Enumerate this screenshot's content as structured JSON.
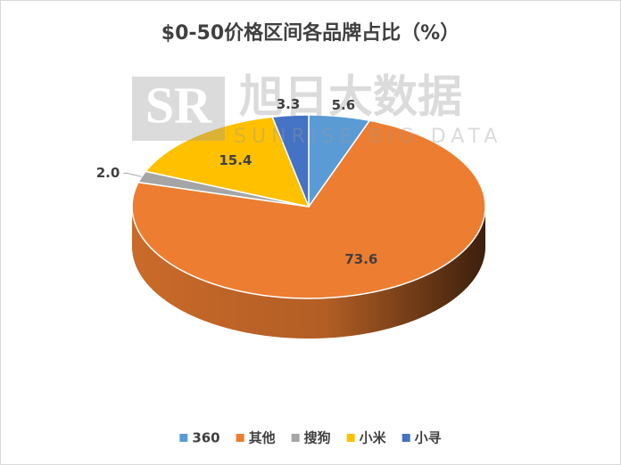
{
  "chart_data": {
    "type": "pie3d",
    "title": "$0-50价格区间各品牌占比（%）",
    "categories": [
      "360",
      "其他",
      "搜狗",
      "小米",
      "小寻"
    ],
    "values": [
      5.6,
      73.6,
      2.0,
      15.4,
      3.3
    ],
    "value_labels": [
      "5.6",
      "73.6",
      "2.0",
      "15.4",
      "3.3"
    ],
    "colors": [
      "#5b9bd5",
      "#ed7d31",
      "#a5a5a5",
      "#ffc000",
      "#4472c4"
    ],
    "legend": "bottom",
    "watermark": {
      "title": "旭日大数据",
      "subtitle": "SUNRISE BIG DATA"
    }
  }
}
